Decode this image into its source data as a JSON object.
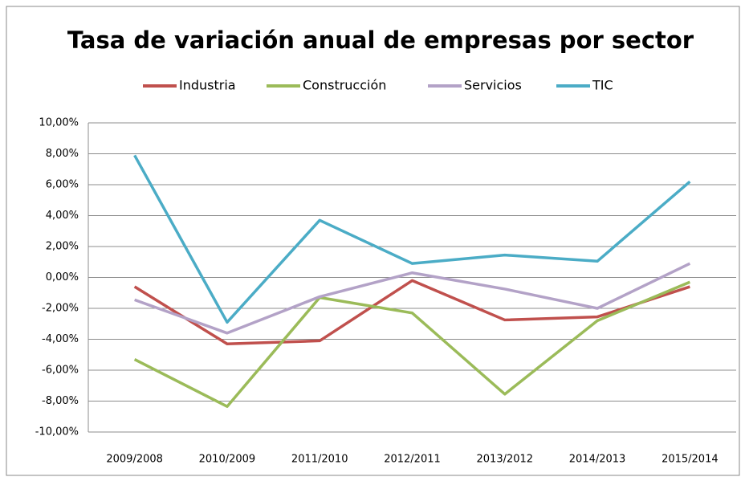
{
  "chart_data": {
    "type": "line",
    "title": "Tasa de variación anual de empresas por sector",
    "categories": [
      "2009/2008",
      "2010/2009",
      "2011/2010",
      "2012/2011",
      "2013/2012",
      "2014/2013",
      "2015/2014"
    ],
    "series": [
      {
        "name": "Industria",
        "color": "#c0504d",
        "values": [
          -0.6,
          -4.3,
          -4.1,
          -0.2,
          -2.75,
          -2.55,
          -0.6
        ]
      },
      {
        "name": "Construcción",
        "color": "#9bbb59",
        "values": [
          -5.3,
          -8.35,
          -1.3,
          -2.3,
          -7.55,
          -2.8,
          -0.3
        ]
      },
      {
        "name": "Servicios",
        "color": "#b3a2c7",
        "values": [
          -1.45,
          -3.6,
          -1.25,
          0.3,
          -0.75,
          -2.0,
          0.9
        ]
      },
      {
        "name": "TIC",
        "color": "#4bacc6",
        "values": [
          7.9,
          -2.9,
          3.7,
          0.9,
          1.45,
          1.05,
          6.2
        ]
      }
    ],
    "ylim": [
      -10,
      10
    ],
    "yticks": [
      {
        "value": -10,
        "label": "-10,00%"
      },
      {
        "value": -8,
        "label": "-8,00%"
      },
      {
        "value": -6,
        "label": "-6,00%"
      },
      {
        "value": -4,
        "label": "-4,00%"
      },
      {
        "value": -2,
        "label": "-2,00%"
      },
      {
        "value": 0,
        "label": "0,00%"
      },
      {
        "value": 2,
        "label": "2,00%"
      },
      {
        "value": 4,
        "label": "4,00%"
      },
      {
        "value": 6,
        "label": "6,00%"
      },
      {
        "value": 8,
        "label": "8,00%"
      },
      {
        "value": 10,
        "label": "10,00%"
      }
    ],
    "grid": true
  }
}
